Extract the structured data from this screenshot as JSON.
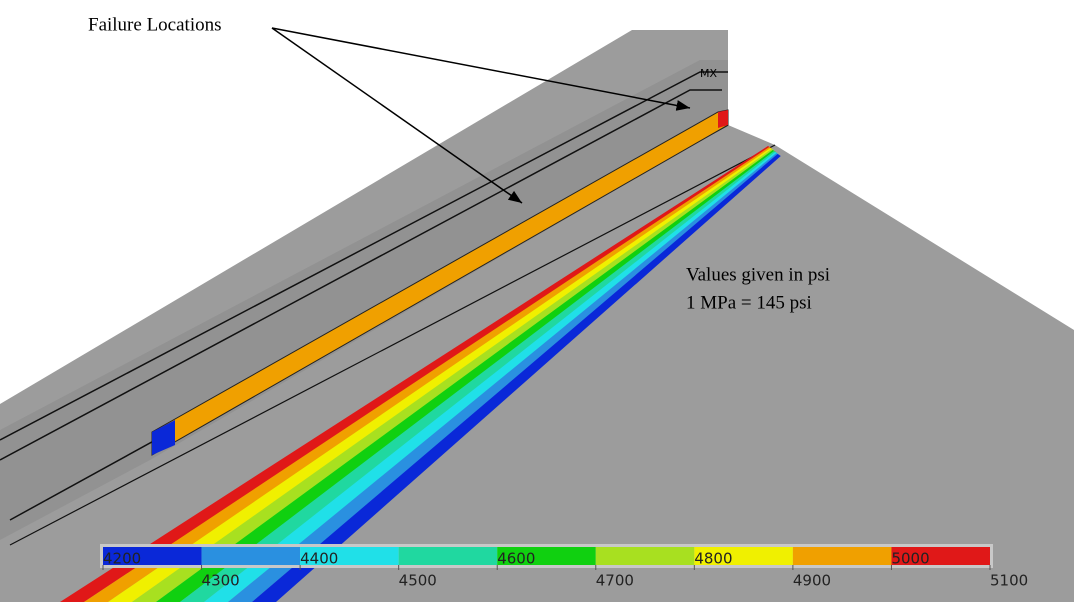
{
  "annotations": {
    "failure": "Failure Locations",
    "units": "Values given in psi",
    "conversion": "1 MPa = 145 psi",
    "max_marker": "MX"
  },
  "legend": {
    "ticks": [
      4200,
      4300,
      4400,
      4500,
      4600,
      4700,
      4800,
      4900,
      5000,
      5100
    ],
    "colors": [
      "#0a28d8",
      "#2a90e0",
      "#20e0e8",
      "#20d8a0",
      "#10d010",
      "#a8e020",
      "#f0f000",
      "#f0a000",
      "#e01818"
    ]
  }
}
